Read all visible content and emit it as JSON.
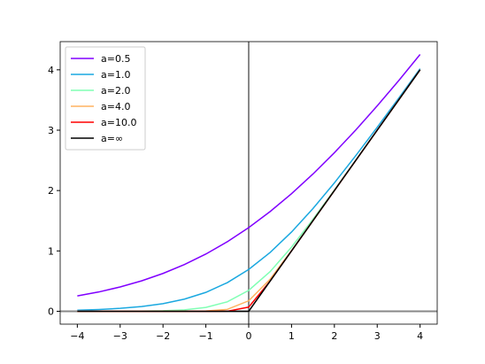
{
  "chart_data": {
    "type": "line",
    "x": [
      -4,
      -3.5,
      -3,
      -2.5,
      -2,
      -1.5,
      -1,
      -0.5,
      0,
      0.5,
      1,
      1.5,
      2,
      2.5,
      3,
      3.5,
      4
    ],
    "series": [
      {
        "name": "a=0.5",
        "color": "#8000ff",
        "values": [
          0.254,
          0.32,
          0.403,
          0.504,
          0.627,
          0.774,
          0.948,
          1.152,
          1.386,
          1.652,
          1.948,
          2.274,
          2.627,
          3.004,
          3.403,
          3.82,
          4.254
        ]
      },
      {
        "name": "a=1.0",
        "color": "#1aa8e0",
        "values": [
          0.0181,
          0.0297,
          0.0486,
          0.0789,
          0.1269,
          0.2014,
          0.3133,
          0.4741,
          0.6931,
          0.9741,
          1.3133,
          1.7014,
          2.1269,
          2.5789,
          3.0486,
          3.5297,
          4.0181
        ]
      },
      {
        "name": "a=2.0",
        "color": "#80ffb4",
        "values": [
          0.0002,
          0.0005,
          0.0012,
          0.0034,
          0.0091,
          0.0243,
          0.0635,
          0.1566,
          0.3466,
          0.6566,
          1.0635,
          1.5243,
          2.0091,
          2.5034,
          3.0012,
          3.5005,
          4.0002
        ]
      },
      {
        "name": "a=4.0",
        "color": "#ffb360",
        "values": [
          0,
          0,
          0,
          0,
          0.0001,
          0.0006,
          0.0045,
          0.0317,
          0.1733,
          0.5317,
          1.0045,
          1.5006,
          2.0001,
          2.5,
          3,
          3.5,
          4
        ]
      },
      {
        "name": "a=10.0",
        "color": "#ff0000",
        "values": [
          0,
          0,
          0,
          0,
          0,
          0,
          0,
          0.0007,
          0.0693,
          0.5007,
          1,
          1.5,
          2,
          2.5,
          3,
          3.5,
          4
        ]
      },
      {
        "name": "a=∞",
        "color": "#000000",
        "values": [
          0,
          0,
          0,
          0,
          0,
          0,
          0,
          0,
          0,
          0.5,
          1,
          1.5,
          2,
          2.5,
          3,
          3.5,
          4
        ]
      }
    ],
    "xlim": [
      -4.4,
      4.4
    ],
    "ylim": [
      -0.213,
      4.467
    ],
    "xticks": [
      {
        "value": -4,
        "label": "−4"
      },
      {
        "value": -3,
        "label": "−3"
      },
      {
        "value": -2,
        "label": "−2"
      },
      {
        "value": -1,
        "label": "−1"
      },
      0,
      1,
      2,
      3,
      4
    ],
    "yticks": [
      0,
      1,
      2,
      3,
      4
    ],
    "axhline": 0,
    "axvline": 0,
    "reference_color": "#888888",
    "legend": "upper left"
  }
}
